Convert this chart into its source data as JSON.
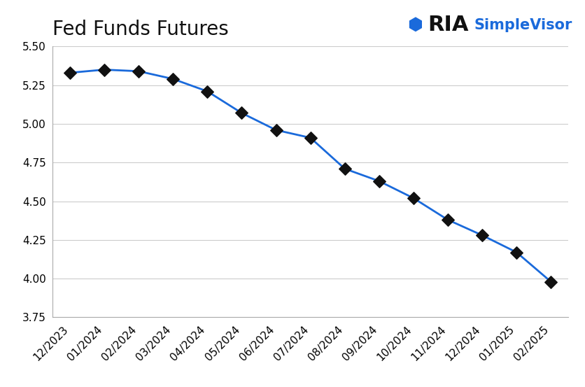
{
  "title": "Fed Funds Futures",
  "x_labels": [
    "12/2023",
    "01/2024",
    "02/2024",
    "03/2024",
    "04/2024",
    "05/2024",
    "06/2024",
    "07/2024",
    "08/2024",
    "09/2024",
    "10/2024",
    "11/2024",
    "12/2024",
    "01/2025",
    "02/2025"
  ],
  "y_values": [
    5.33,
    5.35,
    5.34,
    5.29,
    5.21,
    5.07,
    4.96,
    4.91,
    4.71,
    4.63,
    4.52,
    4.38,
    4.28,
    4.17,
    3.98
  ],
  "line_color": "#1a6adb",
  "marker_color": "#111111",
  "marker_size": 80,
  "line_width": 2.0,
  "ylim": [
    3.75,
    5.5
  ],
  "yticks": [
    3.75,
    4.0,
    4.25,
    4.5,
    4.75,
    5.0,
    5.25,
    5.5
  ],
  "background_color": "#ffffff",
  "grid_color": "#cccccc",
  "title_fontsize": 20,
  "tick_fontsize": 11,
  "ria_fontsize": 22,
  "simplevisor_fontsize": 15,
  "ria_color": "#111111",
  "simplevisor_color": "#1a6adb"
}
